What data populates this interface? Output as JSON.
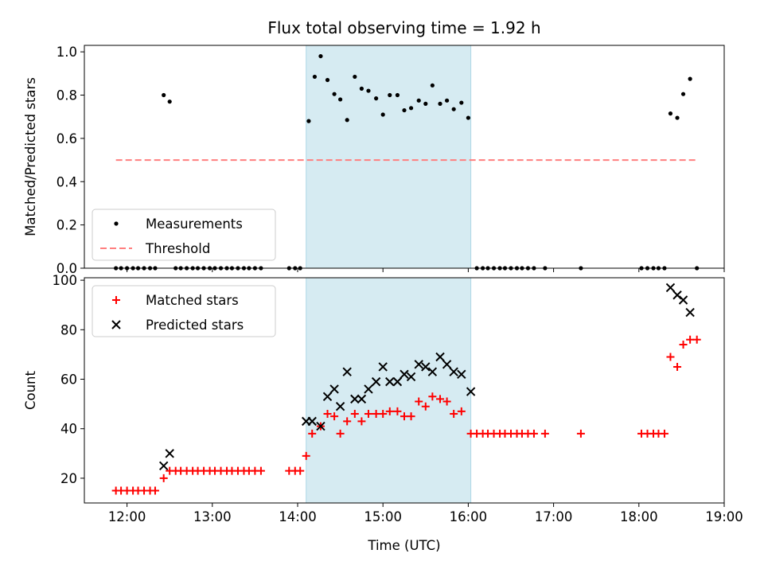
{
  "chart_data": {
    "type": "scatter",
    "title": "Flux total observing time = 1.92 h",
    "xlabel": "Time (UTC)",
    "x_unit": "hours UTC",
    "xlim": [
      11.5,
      19.0
    ],
    "xticks": [
      12,
      13,
      14,
      15,
      16,
      17,
      18,
      19
    ],
    "xtick_labels": [
      "12:00",
      "13:00",
      "14:00",
      "15:00",
      "16:00",
      "17:00",
      "18:00",
      "19:00"
    ],
    "shaded_span": {
      "x_start": 14.1,
      "x_end": 16.03,
      "color": "#add8e6"
    },
    "panels": [
      {
        "ylabel": "Matched/Predicted stars",
        "ylim": [
          0,
          1.03
        ],
        "yticks": [
          0.0,
          0.2,
          0.4,
          0.6,
          0.8,
          1.0
        ],
        "ytick_labels": [
          "0.0",
          "0.2",
          "0.4",
          "0.6",
          "0.8",
          "1.0"
        ],
        "legend_position": "lower-left",
        "series": [
          {
            "name": "Measurements",
            "marker": "dot",
            "color": "#000000",
            "x": [
              11.87,
              11.93,
              12.0,
              12.07,
              12.13,
              12.2,
              12.27,
              12.33,
              12.43,
              12.5,
              12.57,
              12.63,
              12.7,
              12.77,
              12.83,
              12.9,
              12.97,
              13.03,
              13.1,
              13.17,
              13.23,
              13.3,
              13.37,
              13.43,
              13.5,
              13.57,
              13.9,
              13.97,
              14.03,
              14.13,
              14.2,
              14.27,
              14.35,
              14.43,
              14.5,
              14.58,
              14.67,
              14.75,
              14.83,
              14.92,
              15.0,
              15.08,
              15.17,
              15.25,
              15.33,
              15.42,
              15.5,
              15.58,
              15.67,
              15.75,
              15.83,
              15.92,
              16.0,
              16.1,
              16.17,
              16.23,
              16.3,
              16.37,
              16.43,
              16.5,
              16.57,
              16.63,
              16.7,
              16.77,
              16.9,
              17.32,
              18.03,
              18.1,
              18.17,
              18.23,
              18.3,
              18.37,
              18.45,
              18.52,
              18.6,
              18.68
            ],
            "y": [
              0,
              0,
              0,
              0,
              0,
              0,
              0,
              0,
              0.8,
              0.77,
              0,
              0,
              0,
              0,
              0,
              0,
              0,
              0,
              0,
              0,
              0,
              0,
              0,
              0,
              0,
              0,
              0,
              0,
              0,
              0.68,
              0.885,
              0.98,
              0.87,
              0.805,
              0.78,
              0.685,
              0.885,
              0.83,
              0.82,
              0.785,
              0.71,
              0.8,
              0.8,
              0.73,
              0.74,
              0.775,
              0.76,
              0.845,
              0.76,
              0.775,
              0.735,
              0.765,
              0.695,
              0,
              0,
              0,
              0,
              0,
              0,
              0,
              0,
              0,
              0,
              0,
              0,
              0,
              0,
              0,
              0,
              0,
              0,
              0.715,
              0.695,
              0.805,
              0.875,
              0
            ]
          },
          {
            "name": "Threshold",
            "marker": "dashed-line",
            "color": "#ff7f7f",
            "x": [
              11.87,
              18.68
            ],
            "y": [
              0.5,
              0.5
            ]
          }
        ]
      },
      {
        "ylabel": "Count",
        "ylim": [
          10,
          101
        ],
        "yticks": [
          20,
          40,
          60,
          80,
          100
        ],
        "ytick_labels": [
          "20",
          "40",
          "60",
          "80",
          "100"
        ],
        "legend_position": "upper-left",
        "series": [
          {
            "name": "Matched stars",
            "marker": "plus",
            "color": "#ff0000",
            "x": [
              11.87,
              11.93,
              12.0,
              12.07,
              12.13,
              12.2,
              12.27,
              12.33,
              12.43,
              12.5,
              12.57,
              12.63,
              12.7,
              12.77,
              12.83,
              12.9,
              12.97,
              13.03,
              13.1,
              13.17,
              13.23,
              13.3,
              13.37,
              13.43,
              13.5,
              13.57,
              13.9,
              13.97,
              14.03,
              14.1,
              14.17,
              14.27,
              14.35,
              14.43,
              14.5,
              14.58,
              14.67,
              14.75,
              14.83,
              14.92,
              15.0,
              15.08,
              15.17,
              15.25,
              15.33,
              15.42,
              15.5,
              15.58,
              15.67,
              15.75,
              15.83,
              15.92,
              16.03,
              16.1,
              16.17,
              16.23,
              16.3,
              16.37,
              16.43,
              16.5,
              16.57,
              16.63,
              16.7,
              16.77,
              16.9,
              17.32,
              18.03,
              18.1,
              18.17,
              18.23,
              18.3,
              18.37,
              18.45,
              18.52,
              18.6,
              18.68
            ],
            "y": [
              15,
              15,
              15,
              15,
              15,
              15,
              15,
              15,
              20,
              23,
              23,
              23,
              23,
              23,
              23,
              23,
              23,
              23,
              23,
              23,
              23,
              23,
              23,
              23,
              23,
              23,
              23,
              23,
              23,
              29,
              38,
              41,
              46,
              45,
              38,
              43,
              46,
              43,
              46,
              46,
              46,
              47,
              47,
              45,
              45,
              51,
              49,
              53,
              52,
              51,
              46,
              47,
              38,
              38,
              38,
              38,
              38,
              38,
              38,
              38,
              38,
              38,
              38,
              38,
              38,
              38,
              38,
              38,
              38,
              38,
              38,
              69,
              65,
              74,
              76,
              76
            ]
          },
          {
            "name": "Predicted stars",
            "marker": "x",
            "color": "#000000",
            "x": [
              12.43,
              12.5,
              14.1,
              14.17,
              14.27,
              14.35,
              14.43,
              14.5,
              14.58,
              14.67,
              14.75,
              14.83,
              14.92,
              15.0,
              15.08,
              15.17,
              15.25,
              15.33,
              15.42,
              15.5,
              15.58,
              15.67,
              15.75,
              15.83,
              15.92,
              16.03,
              18.37,
              18.45,
              18.52,
              18.6
            ],
            "y": [
              25,
              30,
              43,
              43,
              41,
              53,
              56,
              49,
              63,
              52,
              52,
              56,
              59,
              65,
              59,
              59,
              62,
              61,
              66,
              65,
              63,
              69,
              66,
              63,
              62,
              55,
              97,
              94,
              92,
              87
            ]
          }
        ]
      }
    ]
  }
}
